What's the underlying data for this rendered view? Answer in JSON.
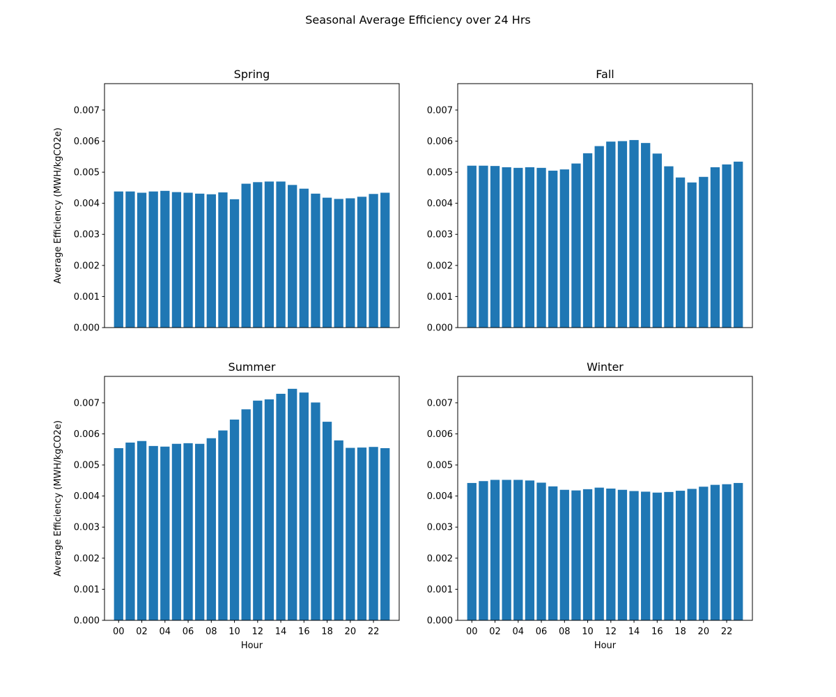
{
  "figure": {
    "suptitle": "Seasonal Average Efficiency over 24 Hrs"
  },
  "chart_data": [
    {
      "type": "bar",
      "title": "Spring",
      "xlabel": "",
      "ylabel": "Average Efficiency (MWH/kgCO2e)",
      "categories": [
        "00",
        "01",
        "02",
        "03",
        "04",
        "05",
        "06",
        "07",
        "08",
        "09",
        "10",
        "11",
        "12",
        "13",
        "14",
        "15",
        "16",
        "17",
        "18",
        "19",
        "20",
        "21",
        "22",
        "23"
      ],
      "values": [
        0.00438,
        0.00438,
        0.00434,
        0.00438,
        0.0044,
        0.00436,
        0.00434,
        0.00431,
        0.00429,
        0.00435,
        0.00413,
        0.00463,
        0.00468,
        0.0047,
        0.0047,
        0.00459,
        0.00447,
        0.00431,
        0.00418,
        0.00414,
        0.00416,
        0.00421,
        0.0043,
        0.00434
      ],
      "ylim": [
        0,
        0.00785
      ],
      "yticks": [
        "0.000",
        "0.001",
        "0.002",
        "0.003",
        "0.004",
        "0.005",
        "0.006",
        "0.007"
      ],
      "xticks": [],
      "color": "#1f77b4"
    },
    {
      "type": "bar",
      "title": "Fall",
      "xlabel": "",
      "ylabel": "",
      "categories": [
        "00",
        "01",
        "02",
        "03",
        "04",
        "05",
        "06",
        "07",
        "08",
        "09",
        "10",
        "11",
        "12",
        "13",
        "14",
        "15",
        "16",
        "17",
        "18",
        "19",
        "20",
        "21",
        "22",
        "23"
      ],
      "values": [
        0.00521,
        0.00521,
        0.0052,
        0.00516,
        0.00514,
        0.00516,
        0.00514,
        0.00505,
        0.00509,
        0.00528,
        0.00561,
        0.00584,
        0.005985,
        0.006,
        0.006035,
        0.00594,
        0.0056,
        0.00519,
        0.00483,
        0.00467,
        0.00485,
        0.00516,
        0.00525,
        0.00534
      ],
      "ylim": [
        0,
        0.00785
      ],
      "yticks": [
        "0.000",
        "0.001",
        "0.002",
        "0.003",
        "0.004",
        "0.005",
        "0.006",
        "0.007"
      ],
      "xticks": [],
      "color": "#1f77b4"
    },
    {
      "type": "bar",
      "title": "Summer",
      "xlabel": "Hour",
      "ylabel": "Average Efficiency (MWH/kgCO2e)",
      "categories": [
        "00",
        "01",
        "02",
        "03",
        "04",
        "05",
        "06",
        "07",
        "08",
        "09",
        "10",
        "11",
        "12",
        "13",
        "14",
        "15",
        "16",
        "17",
        "18",
        "19",
        "20",
        "21",
        "22",
        "23"
      ],
      "values": [
        0.00554,
        0.00572,
        0.00577,
        0.00561,
        0.00559,
        0.00568,
        0.0057,
        0.00568,
        0.00586,
        0.00611,
        0.00646,
        0.00679,
        0.00707,
        0.00711,
        0.00729,
        0.00745,
        0.00733,
        0.00701,
        0.00639,
        0.00579,
        0.00555,
        0.00556,
        0.00558,
        0.00554
      ],
      "ylim": [
        0,
        0.00785
      ],
      "yticks": [
        "0.000",
        "0.001",
        "0.002",
        "0.003",
        "0.004",
        "0.005",
        "0.006",
        "0.007"
      ],
      "xticks": [
        "00",
        "02",
        "04",
        "06",
        "08",
        "10",
        "12",
        "14",
        "16",
        "18",
        "20",
        "22"
      ],
      "color": "#1f77b4"
    },
    {
      "type": "bar",
      "title": "Winter",
      "xlabel": "Hour",
      "ylabel": "",
      "categories": [
        "00",
        "01",
        "02",
        "03",
        "04",
        "05",
        "06",
        "07",
        "08",
        "09",
        "10",
        "11",
        "12",
        "13",
        "14",
        "15",
        "16",
        "17",
        "18",
        "19",
        "20",
        "21",
        "22",
        "23"
      ],
      "values": [
        0.00442,
        0.00448,
        0.00452,
        0.00452,
        0.00452,
        0.0045,
        0.00443,
        0.00431,
        0.0042,
        0.00418,
        0.00422,
        0.00427,
        0.00424,
        0.0042,
        0.00416,
        0.00414,
        0.00411,
        0.00413,
        0.00417,
        0.00423,
        0.0043,
        0.00436,
        0.00438,
        0.00442
      ],
      "ylim": [
        0,
        0.00785
      ],
      "yticks": [
        "0.000",
        "0.001",
        "0.002",
        "0.003",
        "0.004",
        "0.005",
        "0.006",
        "0.007"
      ],
      "xticks": [
        "00",
        "02",
        "04",
        "06",
        "08",
        "10",
        "12",
        "14",
        "16",
        "18",
        "20",
        "22"
      ],
      "color": "#1f77b4"
    }
  ]
}
